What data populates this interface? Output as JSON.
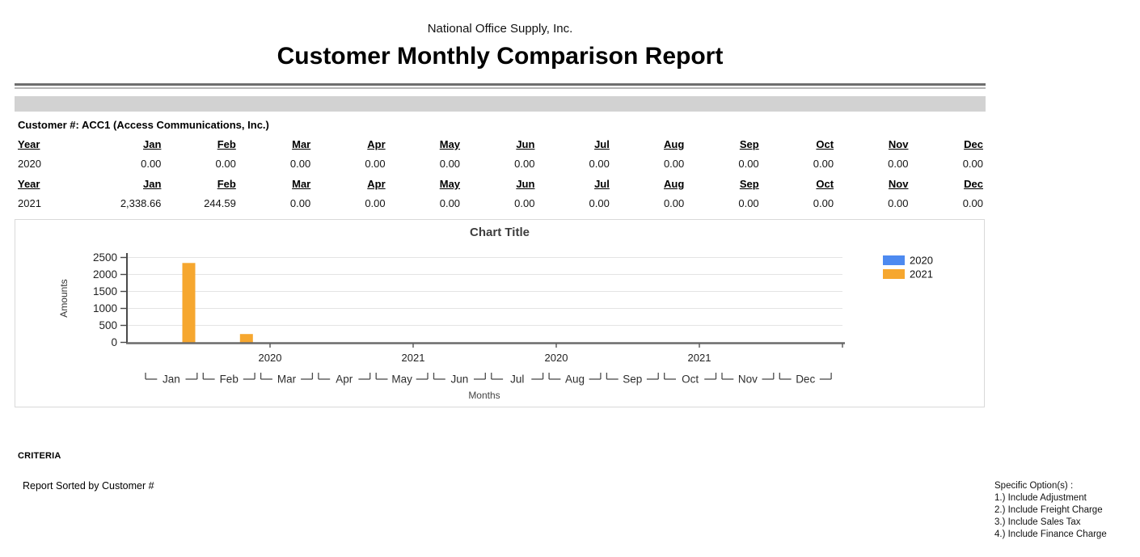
{
  "report": {
    "company": "National Office Supply, Inc.",
    "title": "Customer Monthly Comparison Report",
    "customer_line": "Customer #: ACC1 (Access Communications, Inc.)",
    "criteria_label": "CRITERIA",
    "sorted_by": "Report Sorted by Customer #",
    "options": [
      "Specific Option(s) :",
      "1.) Include Adjustment",
      "2.) Include Freight Charge",
      "3.) Include Sales Tax",
      "4.) Include Finance Charge"
    ]
  },
  "table": {
    "header": [
      "Year",
      "Jan",
      "Feb",
      "Mar",
      "Apr",
      "May",
      "Jun",
      "Jul",
      "Aug",
      "Sep",
      "Oct",
      "Nov",
      "Dec"
    ],
    "rows": [
      {
        "year": "2020",
        "values": [
          "0.00",
          "0.00",
          "0.00",
          "0.00",
          "0.00",
          "0.00",
          "0.00",
          "0.00",
          "0.00",
          "0.00",
          "0.00",
          "0.00"
        ]
      },
      {
        "year": "2021",
        "values": [
          "2,338.66",
          "244.59",
          "0.00",
          "0.00",
          "0.00",
          "0.00",
          "0.00",
          "0.00",
          "0.00",
          "0.00",
          "0.00",
          "0.00"
        ]
      }
    ]
  },
  "chart_data": {
    "type": "bar",
    "title": "Chart Title",
    "xlabel": "Months",
    "ylabel": "Amounts",
    "categories": [
      "Jan",
      "Feb",
      "Mar",
      "Apr",
      "May",
      "Jun",
      "Jul",
      "Aug",
      "Sep",
      "Oct",
      "Nov",
      "Dec"
    ],
    "series": [
      {
        "name": "2020",
        "color": "#4d8af0",
        "values": [
          0,
          0,
          0,
          0,
          0,
          0,
          0,
          0,
          0,
          0,
          0,
          0
        ]
      },
      {
        "name": "2021",
        "color": "#f6a72f",
        "values": [
          2338.66,
          244.59,
          0,
          0,
          0,
          0,
          0,
          0,
          0,
          0,
          0,
          0
        ]
      }
    ],
    "ylim": [
      0,
      2500
    ],
    "yticks": [
      0,
      500,
      1000,
      1500,
      2000,
      2500
    ],
    "axis_year_labels": [
      "2020",
      "2021",
      "2020",
      "2021"
    ],
    "legend_position": "right",
    "grid": true,
    "colors": {
      "grid": "#e4e4e4",
      "axis": "#6b6b6b",
      "tick_text": "#222222",
      "title_text": "#3d3d3d"
    }
  }
}
